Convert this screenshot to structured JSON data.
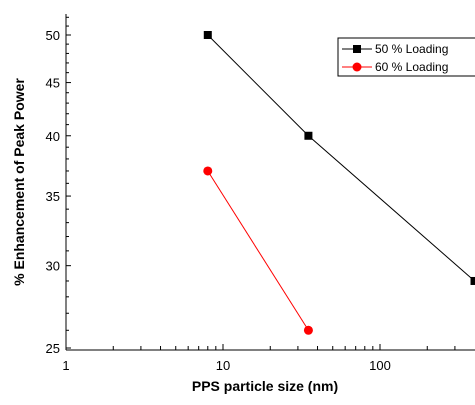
{
  "chart_data": {
    "type": "line",
    "xlabel": "PPS particle size (nm)",
    "ylabel": "% Enhancement of Peak Power",
    "xscale": "log",
    "yscale": "log",
    "xlim": [
      1,
      400
    ],
    "ylim": [
      25,
      52
    ],
    "x_ticks": [
      1,
      10,
      100
    ],
    "x_tick_labels": [
      "1",
      "10",
      "100"
    ],
    "y_ticks": [
      25,
      30,
      35,
      40,
      45,
      50
    ],
    "y_tick_labels": [
      "25",
      "30",
      "35",
      "40",
      "45",
      "50"
    ],
    "legend_position": "top-right",
    "series": [
      {
        "name": "50 % Loading",
        "color": "#000000",
        "marker": "square",
        "x": [
          8,
          35,
          400
        ],
        "y": [
          50,
          40,
          29
        ]
      },
      {
        "name": "60 % Loading",
        "color": "#ff0000",
        "marker": "circle",
        "x": [
          8,
          35
        ],
        "y": [
          37,
          26
        ]
      }
    ]
  }
}
